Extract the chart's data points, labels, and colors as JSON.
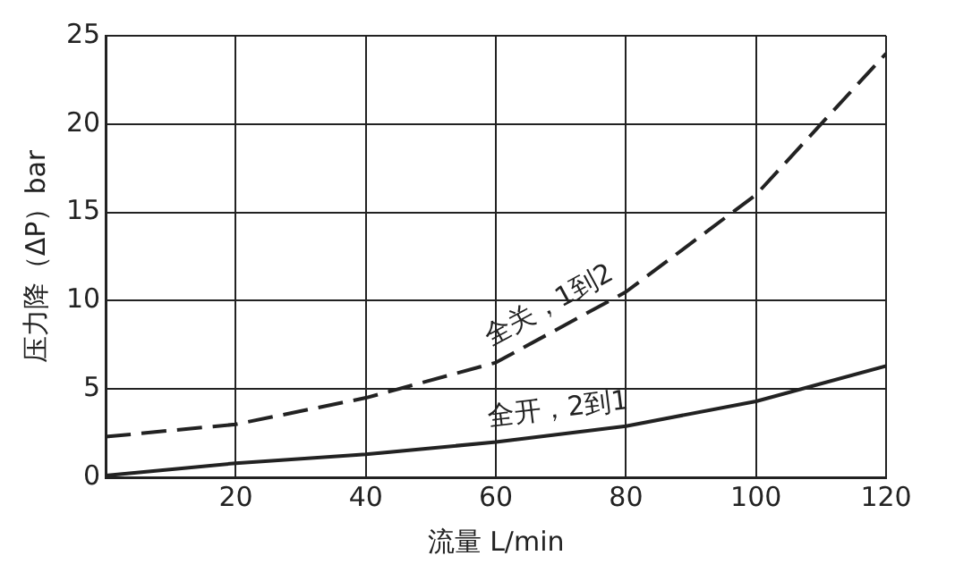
{
  "chart_data": {
    "type": "line",
    "xlabel": "流量 L/min",
    "ylabel": "压力降（ΔP）bar",
    "xlim": [
      0,
      120
    ],
    "xticks": [
      20,
      40,
      60,
      80,
      100,
      120
    ],
    "ylim": [
      0,
      25
    ],
    "yticks": [
      0,
      5,
      10,
      15,
      20,
      25
    ],
    "grid": true,
    "legend": false,
    "marker": "none",
    "series": [
      {
        "name": "全关，1到2",
        "color": "#222222",
        "line_style": "dashed",
        "x": [
          0,
          20,
          40,
          60,
          80,
          100,
          120
        ],
        "values": [
          2.3,
          3,
          4.5,
          6.5,
          10.5,
          16,
          24
        ]
      },
      {
        "name": "全开，2到1",
        "color": "#222222",
        "line_style": "solid",
        "x": [
          0,
          20,
          40,
          60,
          80,
          100,
          120
        ],
        "values": [
          0.1,
          0.8,
          1.3,
          2,
          2.9,
          4.3,
          6.3
        ]
      }
    ]
  }
}
